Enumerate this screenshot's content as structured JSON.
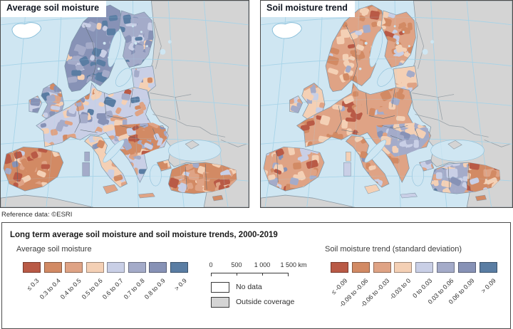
{
  "maps": {
    "left": {
      "title": "Average soil moisture"
    },
    "right": {
      "title": "Soil moisture trend"
    }
  },
  "reference": "Reference data: ©ESRI",
  "legend": {
    "title": "Long term average soil moisture and soil moisture trends, 2000-2019",
    "average": {
      "label": "Average soil moisture",
      "classes": [
        "≤ 0.3",
        "0.3 to 0.4",
        "0.4 to 0.5",
        "0.5 to 0.6",
        "0.6 to 0.7",
        "0.7 to 0.8",
        "0.8 to 0.9",
        "> 0.9"
      ]
    },
    "trend": {
      "label": "Soil moisture trend (standard deviation)",
      "classes": [
        "≤ -0.09",
        "-0.09 to -0.06",
        "-0.06 to -0.03",
        "-0.03 to 0",
        "0 to 0.03",
        "0.03 to 0.06",
        "0.06 to 0.09",
        "> 0.09"
      ]
    },
    "scalebar": {
      "labels": [
        "0",
        "500",
        "1 000",
        "1 500 km"
      ]
    },
    "no_data": "No data",
    "outside_coverage": "Outside coverage"
  },
  "colors": {
    "palette": [
      "#b95a46",
      "#d28a64",
      "#dfa385",
      "#f4d0b5",
      "#c9cfe6",
      "#a4abc9",
      "#8792b6",
      "#5a7da3"
    ],
    "sea": "#cfe6f2",
    "graticule": "#a7d3e8",
    "outside": "#d4d4d4",
    "no_data_fill": "#ffffff",
    "coast": "#8fc0da",
    "border_land": "#5d6b75",
    "map_frame": "#4a4a4a"
  }
}
